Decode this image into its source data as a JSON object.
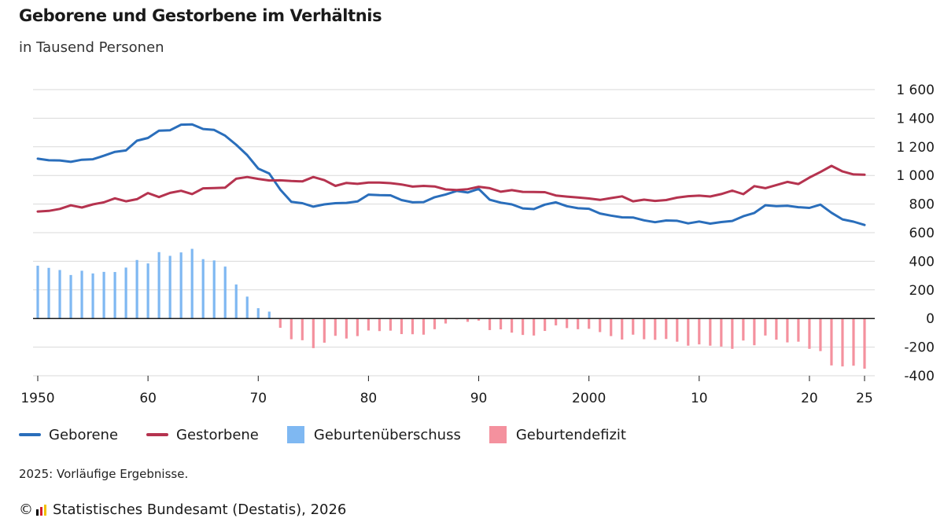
{
  "header": {
    "title": "Geborene und Gestorbene im Verhältnis",
    "subtitle": "in Tausend Personen"
  },
  "legend": {
    "geborene": "Geborene",
    "gestorbene": "Gestorbene",
    "ueberschuss": "Geburtenüberschuss",
    "defizit": "Geburtendefizit"
  },
  "note": "2025: Vorläufige Ergebnisse.",
  "source": {
    "copyright": "©",
    "text": "Statistisches Bundesamt (Destatis), 2026"
  },
  "colors": {
    "geborene": "#2a6ebb",
    "gestorbene": "#b5334f",
    "ueberschuss": "#7fb8f2",
    "defizit": "#f4919e",
    "grid": "#d9d9d9",
    "zero": "#1a1a1a"
  },
  "chart_data": {
    "type": "line",
    "x": [
      1950,
      1951,
      1952,
      1953,
      1954,
      1955,
      1956,
      1957,
      1958,
      1959,
      1960,
      1961,
      1962,
      1963,
      1964,
      1965,
      1966,
      1967,
      1968,
      1969,
      1970,
      1971,
      1972,
      1973,
      1974,
      1975,
      1976,
      1977,
      1978,
      1979,
      1980,
      1981,
      1982,
      1983,
      1984,
      1985,
      1986,
      1987,
      1988,
      1989,
      1990,
      1991,
      1992,
      1993,
      1994,
      1995,
      1996,
      1997,
      1998,
      1999,
      2000,
      2001,
      2002,
      2003,
      2004,
      2005,
      2006,
      2007,
      2008,
      2009,
      2010,
      2011,
      2012,
      2013,
      2014,
      2015,
      2016,
      2017,
      2018,
      2019,
      2020,
      2021,
      2022,
      2023,
      2024,
      2025
    ],
    "x_tick_labels": [
      "1950",
      "60",
      "70",
      "80",
      "90",
      "2000",
      "10",
      "20",
      "25"
    ],
    "x_tick_values": [
      1950,
      1960,
      1970,
      1980,
      1990,
      2000,
      2010,
      2020,
      2025
    ],
    "y_tick_labels": [
      "1 600",
      "1 400",
      "1 200",
      "1 000",
      "800",
      "600",
      "400",
      "200",
      "0",
      "-200",
      "-400"
    ],
    "y_tick_values": [
      1600,
      1400,
      1200,
      1000,
      800,
      600,
      400,
      200,
      0,
      -200,
      -400
    ],
    "ylim": [
      -400,
      1600
    ],
    "grid": true,
    "series": [
      {
        "name": "Geborene",
        "style": "line",
        "values": [
          1117,
          1106,
          1105,
          1095,
          1110,
          1113,
          1138,
          1165,
          1175,
          1243,
          1262,
          1313,
          1316,
          1355,
          1357,
          1325,
          1318,
          1278,
          1215,
          1142,
          1048,
          1013,
          901,
          816,
          806,
          782,
          798,
          806,
          808,
          818,
          866,
          862,
          861,
          828,
          812,
          814,
          848,
          867,
          892,
          881,
          906,
          830,
          810,
          798,
          770,
          765,
          796,
          812,
          785,
          771,
          767,
          734,
          719,
          707,
          706,
          686,
          673,
          685,
          683,
          665,
          678,
          663,
          674,
          682,
          715,
          738,
          792,
          785,
          788,
          778,
          773,
          796,
          739,
          693,
          677,
          654
        ]
      },
      {
        "name": "Gestorbene",
        "style": "line",
        "values": [
          748,
          752,
          766,
          791,
          776,
          798,
          812,
          840,
          819,
          834,
          877,
          849,
          878,
          893,
          870,
          910,
          912,
          915,
          977,
          989,
          976,
          965,
          966,
          961,
          958,
          989,
          967,
          927,
          948,
          941,
          950,
          950,
          946,
          937,
          922,
          927,
          923,
          902,
          898,
          904,
          921,
          911,
          886,
          897,
          885,
          884,
          883,
          860,
          852,
          846,
          839,
          829,
          842,
          854,
          819,
          831,
          822,
          828,
          845,
          855,
          859,
          853,
          870,
          894,
          869,
          925,
          911,
          933,
          955,
          940,
          985,
          1024,
          1067,
          1028,
          1007,
          1005
        ]
      },
      {
        "name": "Geburtenüberschuss",
        "style": "bar",
        "values": [
          369,
          354,
          339,
          304,
          334,
          315,
          326,
          325,
          356,
          409,
          385,
          464,
          438,
          462,
          487,
          415,
          406,
          363,
          238,
          153,
          72,
          48,
          -65,
          -145,
          -152,
          -207,
          -169,
          -121,
          -140,
          -123,
          -84,
          -88,
          -85,
          -109,
          -110,
          -113,
          -75,
          -35,
          -6,
          -23,
          -15,
          -81,
          -76,
          -99,
          -115,
          -119,
          -87,
          -48,
          -67,
          -75,
          -72,
          -95,
          -123,
          -147,
          -113,
          -145,
          -149,
          -143,
          -162,
          -190,
          -181,
          -190,
          -196,
          -212,
          -154,
          -187,
          -119,
          -148,
          -167,
          -162,
          -212,
          -228,
          -328,
          -335,
          -330,
          -351
        ]
      }
    ]
  }
}
